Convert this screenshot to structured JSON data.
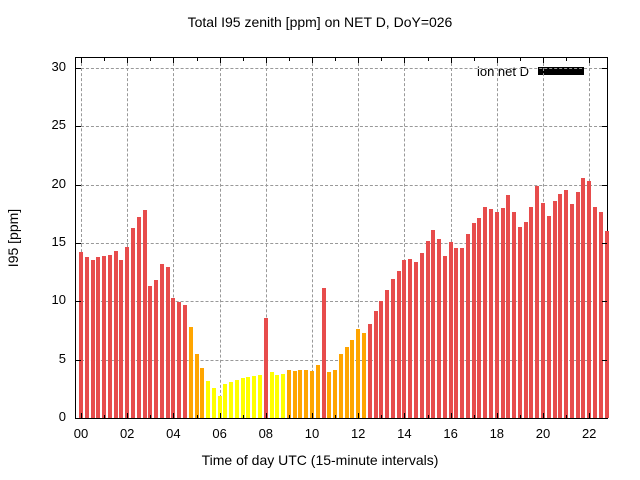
{
  "title": "Total I95 zenith [ppm] on NET D, DoY=026",
  "legend": {
    "label": "ion net D",
    "swatch_color": "#000000"
  },
  "axes": {
    "x": {
      "label": "Time of day UTC (15-minute intervals)",
      "tick_labels": [
        "00",
        "02",
        "04",
        "06",
        "08",
        "10",
        "12",
        "14",
        "16",
        "18",
        "20",
        "22"
      ]
    },
    "y": {
      "label": "I95 [ppm]",
      "tick_labels": [
        "0",
        "5",
        "10",
        "15",
        "20",
        "25",
        "30"
      ]
    }
  },
  "palette": {
    "red": "#e74c4c",
    "orange": "#ffa500",
    "yellow": "#ffff00",
    "grid": "#999999",
    "text": "#000000",
    "background": "#ffffff"
  },
  "chart_data": {
    "type": "bar",
    "title": "Total I95 zenith [ppm] on NET D, DoY=026",
    "xlabel": "Time of day UTC (15-minute intervals)",
    "ylabel": "I95 [ppm]",
    "interval_minutes": 15,
    "x_hours_range": [
      0,
      23
    ],
    "ylim": [
      0,
      30.9
    ],
    "yticks": [
      0,
      5,
      10,
      15,
      20,
      25,
      30
    ],
    "xticks_hours": [
      0,
      2,
      4,
      6,
      8,
      10,
      12,
      14,
      16,
      18,
      20,
      22
    ],
    "grid": true,
    "legend_entries": [
      "ion net D"
    ],
    "legend_position": "top-right",
    "categories": [
      "00:00",
      "00:15",
      "00:30",
      "00:45",
      "01:00",
      "01:15",
      "01:30",
      "01:45",
      "02:00",
      "02:15",
      "02:30",
      "02:45",
      "03:00",
      "03:15",
      "03:30",
      "03:45",
      "04:00",
      "04:15",
      "04:30",
      "04:45",
      "05:00",
      "05:15",
      "05:30",
      "05:45",
      "06:00",
      "06:15",
      "06:30",
      "06:45",
      "07:00",
      "07:15",
      "07:30",
      "07:45",
      "08:00",
      "08:15",
      "08:30",
      "08:45",
      "09:00",
      "09:15",
      "09:30",
      "09:45",
      "10:00",
      "10:15",
      "10:30",
      "10:45",
      "11:00",
      "11:15",
      "11:30",
      "11:45",
      "12:00",
      "12:15",
      "12:30",
      "12:45",
      "13:00",
      "13:15",
      "13:30",
      "13:45",
      "14:00",
      "14:15",
      "14:30",
      "14:45",
      "15:00",
      "15:15",
      "15:30",
      "15:45",
      "16:00",
      "16:15",
      "16:30",
      "16:45",
      "17:00",
      "17:15",
      "17:30",
      "17:45",
      "18:00",
      "18:15",
      "18:30",
      "18:45",
      "19:00",
      "19:15",
      "19:30",
      "19:45",
      "20:00",
      "20:15",
      "20:30",
      "20:45",
      "21:00",
      "21:15",
      "21:30",
      "21:45",
      "22:00",
      "22:15",
      "22:30",
      "22:45"
    ],
    "values": [
      14.2,
      13.8,
      13.5,
      13.8,
      13.9,
      14.0,
      14.3,
      13.5,
      14.7,
      16.3,
      17.2,
      17.8,
      11.3,
      11.8,
      13.2,
      12.9,
      10.3,
      9.9,
      9.7,
      7.8,
      5.5,
      4.3,
      3.2,
      2.6,
      1.9,
      2.9,
      3.1,
      3.3,
      3.4,
      3.5,
      3.6,
      3.7,
      8.6,
      3.9,
      3.7,
      3.8,
      4.1,
      4.0,
      4.1,
      4.1,
      4.0,
      4.5,
      11.1,
      3.9,
      4.1,
      5.5,
      6.1,
      6.7,
      7.6,
      7.3,
      8.1,
      9.2,
      10.0,
      11.0,
      11.9,
      12.6,
      13.5,
      13.6,
      13.4,
      14.1,
      15.2,
      16.1,
      15.3,
      13.9,
      15.1,
      14.6,
      14.6,
      15.8,
      16.7,
      17.1,
      18.1,
      17.9,
      17.7,
      18.0,
      19.1,
      17.7,
      16.4,
      16.8,
      18.1,
      19.9,
      18.4,
      17.3,
      18.6,
      19.2,
      19.5,
      18.3,
      19.4,
      20.6,
      20.3,
      18.1,
      17.7,
      16.0
    ],
    "colors": [
      "red",
      "red",
      "red",
      "red",
      "red",
      "red",
      "red",
      "red",
      "red",
      "red",
      "red",
      "red",
      "red",
      "red",
      "red",
      "red",
      "red",
      "red",
      "red",
      "orange",
      "orange",
      "orange",
      "yellow",
      "yellow",
      "yellow",
      "yellow",
      "yellow",
      "yellow",
      "yellow",
      "yellow",
      "yellow",
      "yellow",
      "red",
      "yellow",
      "yellow",
      "yellow",
      "orange",
      "orange",
      "orange",
      "orange",
      "orange",
      "orange",
      "red",
      "orange",
      "orange",
      "orange",
      "orange",
      "orange",
      "orange",
      "orange",
      "red",
      "red",
      "red",
      "red",
      "red",
      "red",
      "red",
      "red",
      "red",
      "red",
      "red",
      "red",
      "red",
      "red",
      "red",
      "red",
      "red",
      "red",
      "red",
      "red",
      "red",
      "red",
      "red",
      "red",
      "red",
      "red",
      "red",
      "red",
      "red",
      "red",
      "red",
      "red",
      "red",
      "red",
      "red",
      "red",
      "red",
      "red",
      "red",
      "red",
      "red",
      "red"
    ]
  }
}
